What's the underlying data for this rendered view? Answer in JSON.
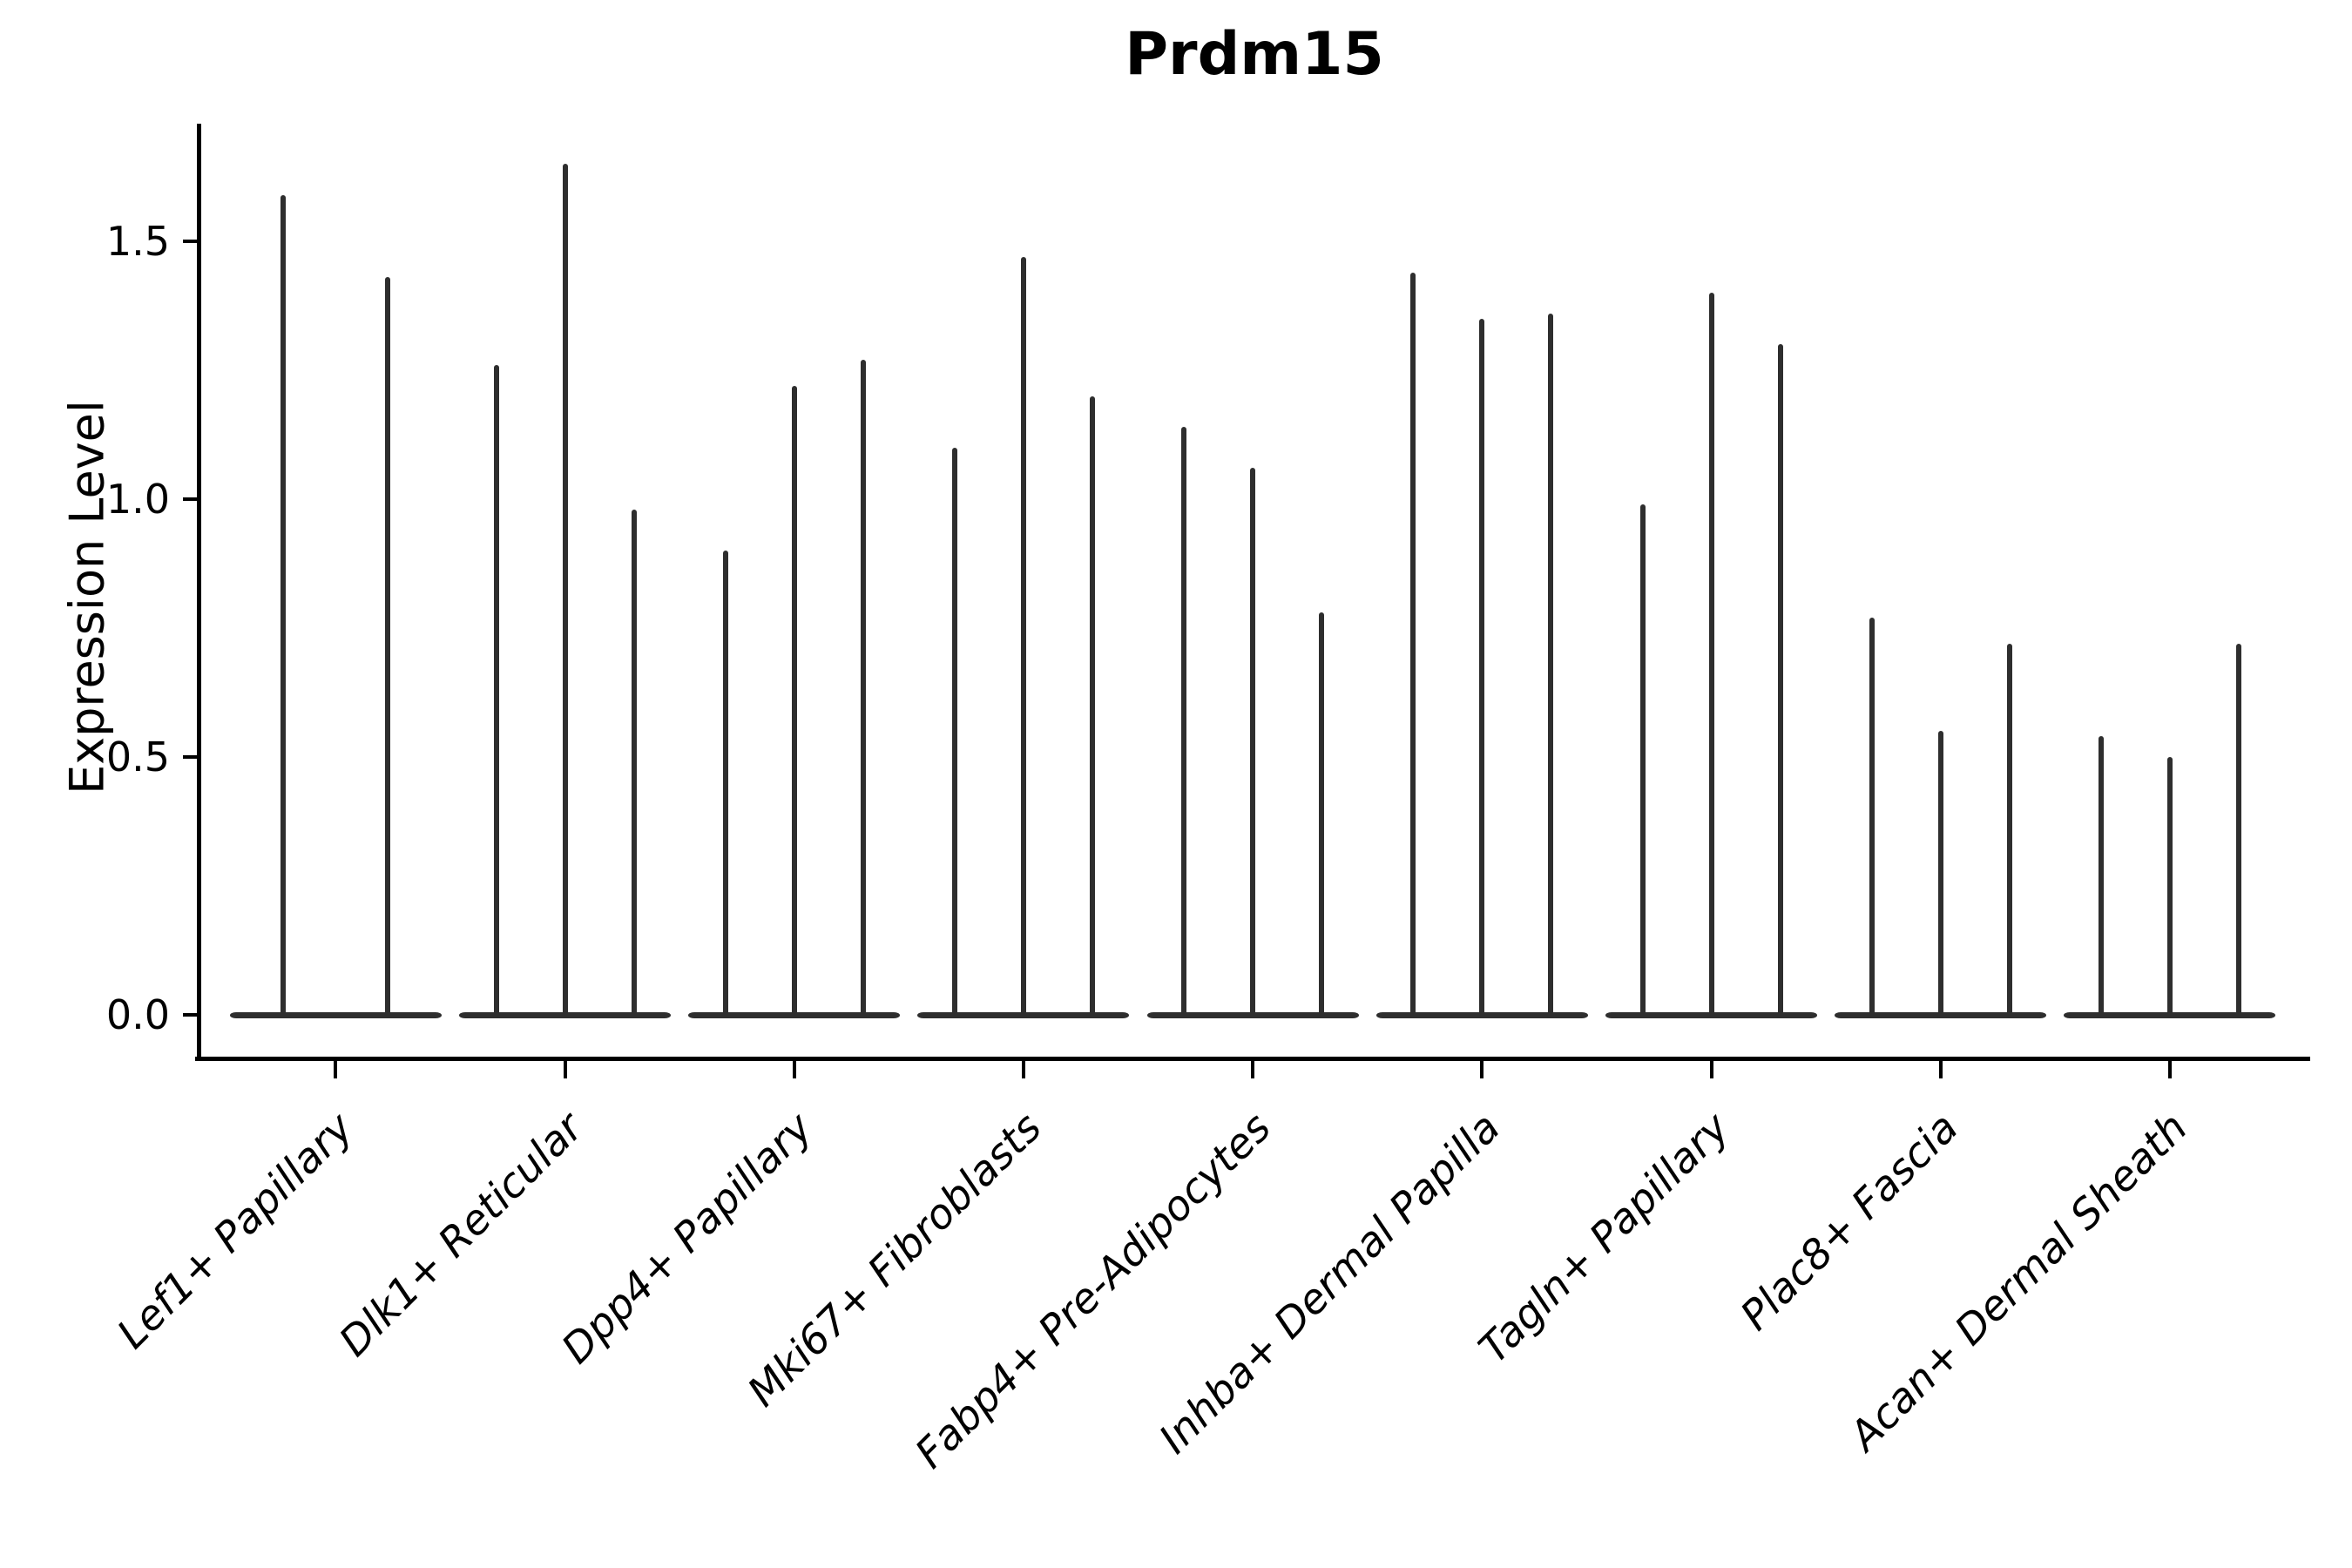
{
  "chart_data": {
    "type": "violin",
    "title": "Prdm15",
    "xlabel": "",
    "ylabel": "Expression Level",
    "ytick_labels": [
      "1.5",
      "1.0",
      "0.5",
      "0.0"
    ],
    "ytick_values": [
      1.5,
      1.0,
      0.5,
      0.0
    ],
    "ylim": [
      -0.086,
      1.73
    ],
    "grid": false,
    "legend": null,
    "x_label_rotation_deg": 45,
    "violin_color": "#2e2e2e",
    "axis_color": "#000000",
    "background_color": "#ffffff",
    "categories": [
      "Lef1+ Papillary",
      "Dlk1+ Reticular",
      "Dpp4+ Papillary",
      "Mki67+ Fibroblasts",
      "Fabp4+ Pre-Adipocytes",
      "Inhba+ Dermal Papilla",
      "Tagln+ Papillary",
      "Plac8+ Fascia",
      "Acan+ Dermal Sheath"
    ],
    "groups": [
      {
        "label": "Lef1+ Papillary",
        "violins": [
          {
            "offset": -60,
            "peak": 1.59
          },
          {
            "offset": 60,
            "peak": 1.43
          }
        ]
      },
      {
        "label": "Dlk1+ Reticular",
        "violins": [
          {
            "offset": -79,
            "peak": 1.26
          },
          {
            "offset": 0,
            "peak": 1.65
          },
          {
            "offset": 79,
            "peak": 0.98
          }
        ]
      },
      {
        "label": "Dpp4+ Papillary",
        "violins": [
          {
            "offset": -79,
            "peak": 0.9
          },
          {
            "offset": 0,
            "peak": 1.22
          },
          {
            "offset": 79,
            "peak": 1.27
          }
        ]
      },
      {
        "label": "Mki67+ Fibroblasts",
        "violins": [
          {
            "offset": -79,
            "peak": 1.1
          },
          {
            "offset": 0,
            "peak": 1.47
          },
          {
            "offset": 79,
            "peak": 1.2
          }
        ]
      },
      {
        "label": "Fabp4+ Pre-Adipocytes",
        "violins": [
          {
            "offset": -79,
            "peak": 1.14
          },
          {
            "offset": 0,
            "peak": 1.06
          },
          {
            "offset": 79,
            "peak": 0.78
          }
        ]
      },
      {
        "label": "Inhba+ Dermal Papilla",
        "violins": [
          {
            "offset": -79,
            "peak": 1.44
          },
          {
            "offset": 0,
            "peak": 1.35
          },
          {
            "offset": 79,
            "peak": 1.36
          }
        ]
      },
      {
        "label": "Tagln+ Papillary",
        "violins": [
          {
            "offset": -79,
            "peak": 0.99
          },
          {
            "offset": 0,
            "peak": 1.4
          },
          {
            "offset": 79,
            "peak": 1.3
          }
        ]
      },
      {
        "label": "Plac8+ Fascia",
        "violins": [
          {
            "offset": -79,
            "peak": 0.77
          },
          {
            "offset": 0,
            "peak": 0.55
          },
          {
            "offset": 79,
            "peak": 0.72
          }
        ]
      },
      {
        "label": "Acan+ Dermal Sheath",
        "violins": [
          {
            "offset": -79,
            "peak": 0.54
          },
          {
            "offset": 0,
            "peak": 0.5
          },
          {
            "offset": 79,
            "peak": 0.72
          }
        ]
      }
    ]
  }
}
